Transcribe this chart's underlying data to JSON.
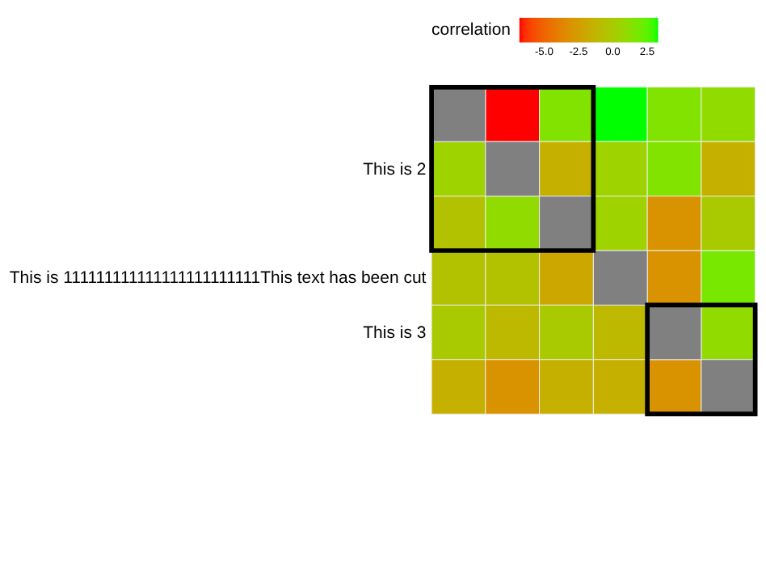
{
  "chart_data": {
    "type": "heatmap",
    "clabel": "correlation",
    "categories": [
      null,
      null,
      null,
      null,
      null,
      null
    ],
    "y_categories": [
      null,
      "This is 2",
      null,
      "This is 111111111111111111111111This text has been cut",
      "This is 3",
      null
    ],
    "cells": [
      [
        null,
        -6.8,
        1.5,
        3.3,
        1.5,
        1.0
      ],
      [
        0.5,
        null,
        -1.5,
        0.5,
        1.5,
        -1.5
      ],
      [
        -0.5,
        1.0,
        null,
        0.5,
        -3.0,
        0.0
      ],
      [
        -0.5,
        -0.5,
        -2.0,
        null,
        -3.0,
        1.8
      ],
      [
        0.0,
        -1.0,
        0.0,
        -1.0,
        null,
        1.0
      ],
      [
        -1.5,
        -3.0,
        -1.5,
        -1.5,
        -3.0,
        null
      ]
    ],
    "clim": [
      -6.8,
      3.3
    ],
    "cticks": [
      {
        "value": -5,
        "label": "-5.0"
      },
      -2.5,
      {
        "value": 0,
        "label": "0.0"
      },
      2.5
    ]
  }
}
